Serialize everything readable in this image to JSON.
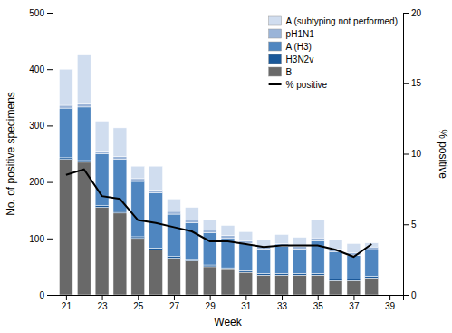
{
  "chart_data": {
    "type": "bar",
    "stacked": true,
    "xlabel": "Week",
    "ylabel": "No. of positive specimens",
    "y2label": "% positive",
    "x": [
      21,
      22,
      23,
      24,
      25,
      26,
      27,
      28,
      29,
      30,
      31,
      32,
      33,
      34,
      35,
      36,
      37,
      38
    ],
    "xlim": [
      20.25,
      39.75
    ],
    "xticks": [
      21,
      23,
      25,
      27,
      29,
      31,
      33,
      35,
      37,
      39
    ],
    "ylim": [
      0,
      500
    ],
    "yticks": [
      0,
      100,
      200,
      300,
      400,
      500
    ],
    "y2lim": [
      0,
      20
    ],
    "y2ticks": [
      0,
      5,
      10,
      15,
      20
    ],
    "legend": "upper right",
    "series": [
      {
        "name": "B",
        "color": "#696969",
        "values": [
          240,
          235,
          155,
          145,
          100,
          80,
          65,
          60,
          50,
          45,
          40,
          35,
          35,
          35,
          35,
          25,
          25,
          30
        ]
      },
      {
        "name": "H3N2v",
        "color": "#1a5899",
        "values": [
          3,
          3,
          3,
          3,
          3,
          3,
          3,
          3,
          3,
          3,
          3,
          3,
          3,
          3,
          3,
          3,
          3,
          3
        ]
      },
      {
        "name": "A (H3)",
        "color": "#4f86c0",
        "values": [
          88,
          95,
          92,
          92,
          98,
          98,
          75,
          65,
          57,
          52,
          48,
          43,
          48,
          43,
          58,
          48,
          42,
          47
        ]
      },
      {
        "name": "pH1N1",
        "color": "#9ab4d8",
        "values": [
          5,
          5,
          5,
          5,
          5,
          5,
          5,
          5,
          5,
          5,
          5,
          5,
          5,
          5,
          5,
          5,
          5,
          5
        ]
      },
      {
        "name": "A (subtyping not performed)",
        "color": "#d0ddef",
        "values": [
          64,
          87,
          53,
          51,
          22,
          42,
          22,
          22,
          18,
          18,
          16,
          12,
          16,
          16,
          32,
          16,
          16,
          7
        ]
      },
      {
        "name": "% positive",
        "type": "line",
        "axis": "y2",
        "color": "#000000",
        "values": [
          8.5,
          8.9,
          7.0,
          6.8,
          5.3,
          5.1,
          4.8,
          4.5,
          3.8,
          3.8,
          3.6,
          3.4,
          3.5,
          3.5,
          3.5,
          3.2,
          2.7,
          3.6
        ]
      }
    ]
  }
}
